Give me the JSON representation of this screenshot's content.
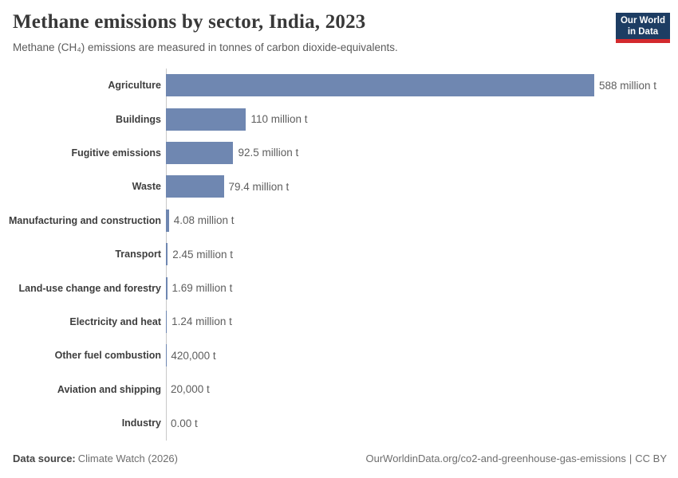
{
  "header": {
    "title": "Methane emissions by sector, India, 2023",
    "subtitle": "Methane (CH₄) emissions are measured in tonnes of carbon dioxide-equivalents."
  },
  "logo": {
    "line1": "Our World",
    "line2": "in Data",
    "bg_color": "#1d3d63",
    "accent_color": "#d32a2e"
  },
  "chart_data": {
    "type": "bar",
    "orientation": "horizontal",
    "title": "Methane emissions by sector, India, 2023",
    "unit": "tonnes of carbon dioxide-equivalents",
    "bar_color": "#6f87b1",
    "axis_color": "#c9c9c9",
    "xlim": [
      0,
      588
    ],
    "grid": false,
    "legend": false,
    "categories": [
      "Agriculture",
      "Buildings",
      "Fugitive emissions",
      "Waste",
      "Manufacturing and construction",
      "Transport",
      "Land-use change and forestry",
      "Electricity and heat",
      "Other fuel combustion",
      "Aviation and shipping",
      "Industry"
    ],
    "values_million_t": [
      588,
      110,
      92.5,
      79.4,
      4.08,
      2.45,
      1.69,
      1.24,
      0.42,
      0.02,
      0
    ],
    "value_labels": [
      "588 million t",
      "110 million t",
      "92.5 million t",
      "79.4 million t",
      "4.08 million t",
      "2.45 million t",
      "1.69 million t",
      "1.24 million t",
      "420,000 t",
      "20,000 t",
      "0.00 t"
    ]
  },
  "footer": {
    "data_source_label": "Data source:",
    "data_source_value": "Climate Watch (2026)",
    "link": "OurWorldinData.org/co2-and-greenhouse-gas-emissions",
    "separator": "|",
    "license": "CC BY"
  }
}
